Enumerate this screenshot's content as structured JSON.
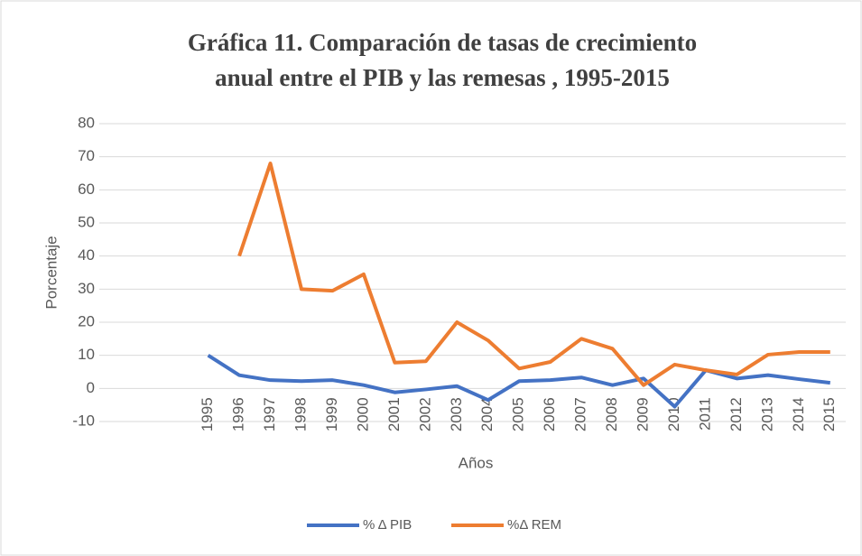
{
  "chart_data": {
    "type": "line",
    "title": [
      "Gráfica 11.  Comparación de tasas de crecimiento",
      "anual entre el PIB y las remesas , 1995-2015"
    ],
    "x_label": "Años",
    "y_label": "Porcentaje",
    "categories": [
      null,
      null,
      null,
      "1995",
      "1996",
      "1997",
      "1998",
      "1999",
      "2000",
      "2001",
      "2002",
      "2003",
      "2004",
      "2005",
      "2006",
      "2007",
      "2008",
      "2009",
      "2010",
      "2011",
      "2012",
      "2013",
      "2014",
      "2015"
    ],
    "series": [
      {
        "name": "% Δ PIB",
        "color": "#4472c4",
        "values": [
          null,
          null,
          null,
          10,
          4,
          2.5,
          2.2,
          2.5,
          1,
          -1.2,
          -0.3,
          0.7,
          -3.5,
          2.2,
          2.5,
          3.3,
          1,
          3,
          -5.5,
          5.5,
          3,
          4,
          2.8,
          1.7
        ]
      },
      {
        "name": "%Δ REM",
        "color": "#ed7d31",
        "values": [
          null,
          null,
          null,
          null,
          40,
          68,
          30,
          29.5,
          34.5,
          7.8,
          8.2,
          20,
          14.5,
          6,
          8,
          15,
          12,
          1,
          7.2,
          5.5,
          4.2,
          10.2,
          11,
          11
        ]
      }
    ],
    "ylim": [
      -10,
      80
    ],
    "yticks": [
      -10,
      0,
      10,
      20,
      30,
      40,
      50,
      60,
      70,
      80
    ],
    "grid": true,
    "legend": "bottom"
  }
}
